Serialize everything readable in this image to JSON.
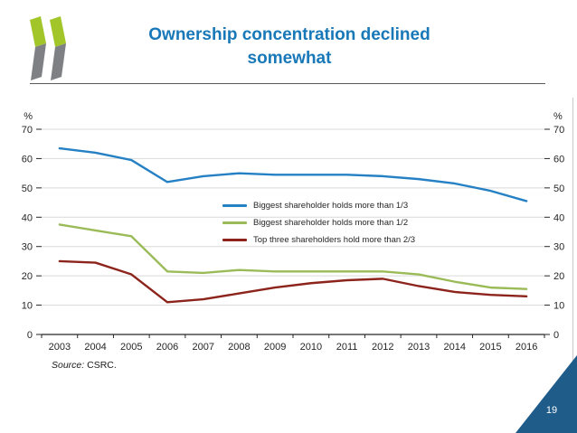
{
  "header": {
    "title": "Ownership concentration declined somewhat"
  },
  "logo": {
    "name": "oecd-chevrons",
    "green": "#a2c62a",
    "gray": "#7e8083"
  },
  "theme": {
    "title_color": "#1878b8",
    "rule_color": "#5a5a5a",
    "grid_color": "#d9d9d9",
    "axis_color": "#262626",
    "triangle_color": "#1f5c8a",
    "page_number_color": "#ffffff"
  },
  "chart_data": {
    "type": "line",
    "title": "",
    "unit_label": "%",
    "xlabel": "",
    "ylabel": "%",
    "ylim": [
      0,
      70
    ],
    "yticks": [
      0,
      10,
      20,
      30,
      40,
      50,
      60,
      70
    ],
    "grid": true,
    "legend_position": "inside-center-right",
    "categories": [
      "2003",
      "2004",
      "2005",
      "2006",
      "2007",
      "2008",
      "2009",
      "2010",
      "2011",
      "2012",
      "2013",
      "2014",
      "2015",
      "2016"
    ],
    "series": [
      {
        "name": "Biggest shareholder holds more than 1/3",
        "color": "#2581c4",
        "values": [
          63.5,
          62,
          59.5,
          52,
          54,
          55,
          54.5,
          54.5,
          54.5,
          54,
          53,
          51.5,
          49,
          45.5
        ]
      },
      {
        "name": "Biggest shareholder holds more than 1/2",
        "color": "#9bbb59",
        "values": [
          37.5,
          35.5,
          33.5,
          21.5,
          21,
          22,
          21.5,
          21.5,
          21.5,
          21.5,
          20.5,
          18,
          16,
          15.5
        ]
      },
      {
        "name": "Top three shareholders hold more than 2/3",
        "color": "#8c241c",
        "values": [
          25,
          24.5,
          20.5,
          11,
          12,
          14,
          16,
          17.5,
          18.5,
          19,
          16.5,
          14.5,
          13.5,
          13
        ]
      }
    ]
  },
  "footer": {
    "source_label": "Source:",
    "source_value": "CSRC.",
    "page_number": "19"
  }
}
